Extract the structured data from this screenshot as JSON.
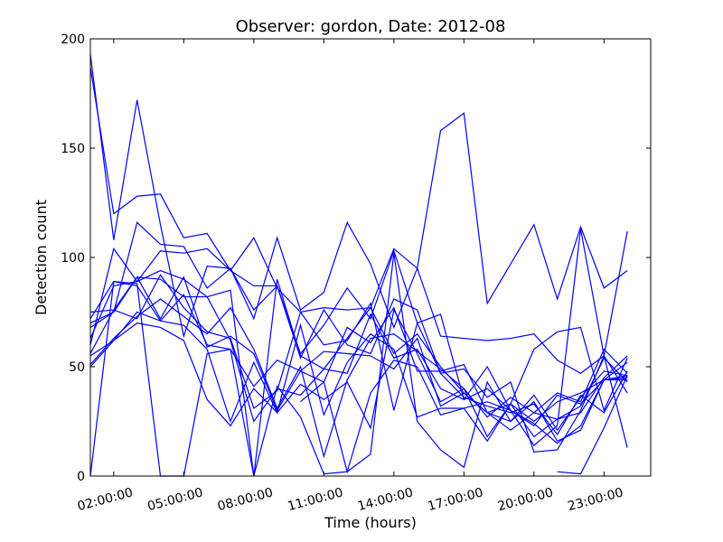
{
  "chart_data": {
    "type": "line",
    "title": "Observer: gordon, Date: 2012-08",
    "xlabel": "Time (hours)",
    "ylabel": "Detection count",
    "xlim": [
      1,
      25
    ],
    "ylim": [
      0,
      200
    ],
    "x_ticks": [
      {
        "value": 2,
        "label": "02:00:00"
      },
      {
        "value": 5,
        "label": "05:00:00"
      },
      {
        "value": 8,
        "label": "08:00:00"
      },
      {
        "value": 11,
        "label": "11:00:00"
      },
      {
        "value": 14,
        "label": "14:00:00"
      },
      {
        "value": 17,
        "label": "17:00:00"
      },
      {
        "value": 20,
        "label": "20:00:00"
      },
      {
        "value": 23,
        "label": "23:00:00"
      }
    ],
    "y_ticks": [
      {
        "value": 0,
        "label": "0"
      },
      {
        "value": 50,
        "label": "50"
      },
      {
        "value": 100,
        "label": "100"
      },
      {
        "value": 150,
        "label": "150"
      },
      {
        "value": 200,
        "label": "200"
      }
    ],
    "grid": false,
    "legend": "none",
    "line_color": "#0000ff",
    "x": [
      1,
      2,
      3,
      4,
      5,
      6,
      7,
      8,
      9,
      10,
      11,
      12,
      13,
      14,
      15,
      16,
      17,
      18,
      19,
      20,
      21,
      22,
      23,
      24
    ],
    "series": [
      {
        "values": [
          193,
          108,
          172,
          115,
          64,
          96,
          95,
          72,
          109,
          76,
          84,
          116,
          97,
          68,
          95,
          158,
          166,
          79,
          97,
          115,
          81,
          114,
          86,
          94
        ]
      },
      {
        "values": [
          187,
          120,
          128,
          129,
          109,
          111,
          94,
          109,
          86,
          75,
          77,
          76,
          77,
          104,
          95,
          64,
          63,
          62,
          63,
          65,
          53,
          47,
          55,
          112
        ]
      },
      {
        "values": [
          60,
          104,
          89,
          103,
          102,
          104,
          94,
          87,
          87,
          56,
          69,
          86,
          72,
          103,
          70,
          74,
          35,
          50,
          30,
          14,
          23,
          113,
          55,
          38
        ]
      },
      {
        "values": [
          70,
          75,
          116,
          106,
          105,
          86,
          95,
          76,
          87,
          54,
          76,
          60,
          56,
          81,
          76,
          47,
          49,
          36,
          43,
          11,
          12,
          30,
          55,
          13
        ]
      },
      {
        "values": [
          63,
          87,
          89,
          94,
          90,
          82,
          85,
          0,
          90,
          55,
          49,
          63,
          77,
          56,
          65,
          50,
          38,
          29,
          21,
          29,
          38,
          34,
          58,
          47
        ]
      },
      {
        "values": [
          75,
          76,
          91,
          90,
          82,
          82,
          62,
          25,
          40,
          37,
          49,
          47,
          74,
          54,
          58,
          40,
          35,
          40,
          30,
          23,
          37,
          33,
          44,
          52
        ]
      },
      {
        "values": [
          72,
          89,
          87,
          71,
          83,
          60,
          58,
          41,
          53,
          48,
          57,
          56,
          55,
          49,
          63,
          32,
          38,
          29,
          33,
          25,
          34,
          38,
          44,
          45
        ]
      },
      {
        "values": [
          68,
          75,
          91,
          72,
          91,
          59,
          64,
          56,
          30,
          48,
          43,
          68,
          61,
          77,
          48,
          48,
          51,
          29,
          25,
          37,
          21,
          36,
          48,
          46
        ]
      },
      {
        "values": [
          56,
          76,
          72,
          92,
          77,
          66,
          63,
          31,
          39,
          75,
          60,
          62,
          79,
          30,
          70,
          47,
          36,
          32,
          29,
          33,
          19,
          37,
          29,
          48
        ]
      },
      {
        "values": [
          51,
          63,
          73,
          81,
          73,
          65,
          77,
          58,
          31,
          50,
          9,
          44,
          63,
          65,
          57,
          49,
          40,
          27,
          36,
          29,
          26,
          32,
          54,
          43
        ]
      },
      {
        "values": [
          50,
          62,
          75,
          71,
          69,
          58,
          25,
          52,
          29,
          42,
          35,
          43,
          22,
          76,
          56,
          34,
          40,
          18,
          33,
          18,
          26,
          29,
          45,
          55
        ]
      },
      {
        "values": [
          55,
          62,
          70,
          68,
          62,
          35,
          23,
          40,
          29,
          69,
          28,
          52,
          65,
          58,
          27,
          31,
          31,
          16,
          33,
          58,
          66,
          68,
          30,
          54
        ]
      },
      {
        "values": [
          0,
          89,
          88,
          0,
          0,
          56,
          58,
          0,
          41,
          27,
          1,
          2,
          10,
          102,
          25,
          12,
          4,
          43,
          25,
          34,
          16,
          21,
          44,
          44
        ]
      },
      {
        "values": [
          null,
          null,
          null,
          null,
          null,
          null,
          null,
          null,
          null,
          34,
          43,
          2,
          38,
          53,
          50,
          28,
          31,
          34,
          30,
          24,
          15,
          23,
          44,
          46
        ]
      },
      {
        "values": [
          null,
          null,
          null,
          null,
          null,
          null,
          null,
          null,
          null,
          null,
          null,
          null,
          null,
          null,
          null,
          null,
          null,
          null,
          null,
          null,
          2,
          1,
          22,
          46
        ]
      }
    ]
  }
}
